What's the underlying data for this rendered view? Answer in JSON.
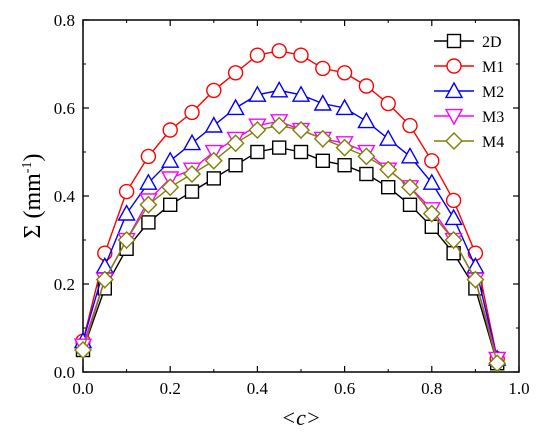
{
  "chart_data": {
    "type": "line",
    "title": "",
    "xlabel": "<c>",
    "ylabel": "Σ (mm",
    "ylabel_sup": "-1",
    "ylabel_close": ")",
    "xlim": [
      0.0,
      1.0
    ],
    "ylim": [
      0.0,
      0.8
    ],
    "x_ticks": [
      "0.0",
      "0.2",
      "0.4",
      "0.6",
      "0.8",
      "1.0"
    ],
    "y_ticks": [
      "0.0",
      "0.2",
      "0.4",
      "0.6",
      "0.8"
    ],
    "legend_position": "top-right",
    "x": [
      0.0,
      0.05,
      0.1,
      0.15,
      0.2,
      0.25,
      0.3,
      0.35,
      0.4,
      0.45,
      0.5,
      0.55,
      0.6,
      0.65,
      0.7,
      0.75,
      0.8,
      0.85,
      0.9,
      0.95
    ],
    "series": [
      {
        "name": "2D",
        "color": "#000000",
        "marker": "square",
        "values": [
          0.05,
          0.19,
          0.28,
          0.34,
          0.38,
          0.41,
          0.44,
          0.47,
          0.5,
          0.51,
          0.5,
          0.48,
          0.47,
          0.45,
          0.42,
          0.38,
          0.33,
          0.27,
          0.19,
          0.02
        ]
      },
      {
        "name": "M1",
        "color": "#ff0000",
        "marker": "circle",
        "values": [
          0.07,
          0.27,
          0.41,
          0.49,
          0.55,
          0.59,
          0.64,
          0.68,
          0.72,
          0.73,
          0.72,
          0.69,
          0.68,
          0.65,
          0.61,
          0.56,
          0.48,
          0.39,
          0.27,
          0.03
        ]
      },
      {
        "name": "M2",
        "color": "#0000ff",
        "marker": "triangle-up",
        "values": [
          0.07,
          0.24,
          0.36,
          0.43,
          0.48,
          0.52,
          0.56,
          0.6,
          0.63,
          0.64,
          0.63,
          0.61,
          0.6,
          0.57,
          0.53,
          0.49,
          0.43,
          0.35,
          0.24,
          0.03
        ]
      },
      {
        "name": "M3",
        "color": "#ff00ff",
        "marker": "triangle-down",
        "values": [
          0.06,
          0.21,
          0.3,
          0.39,
          0.44,
          0.46,
          0.5,
          0.53,
          0.56,
          0.57,
          0.55,
          0.53,
          0.52,
          0.5,
          0.46,
          0.42,
          0.37,
          0.3,
          0.21,
          0.03
        ]
      },
      {
        "name": "M4",
        "color": "#808000",
        "marker": "diamond",
        "values": [
          0.05,
          0.21,
          0.3,
          0.38,
          0.42,
          0.45,
          0.48,
          0.52,
          0.55,
          0.56,
          0.55,
          0.53,
          0.51,
          0.49,
          0.46,
          0.42,
          0.36,
          0.3,
          0.21,
          0.02
        ]
      }
    ]
  }
}
